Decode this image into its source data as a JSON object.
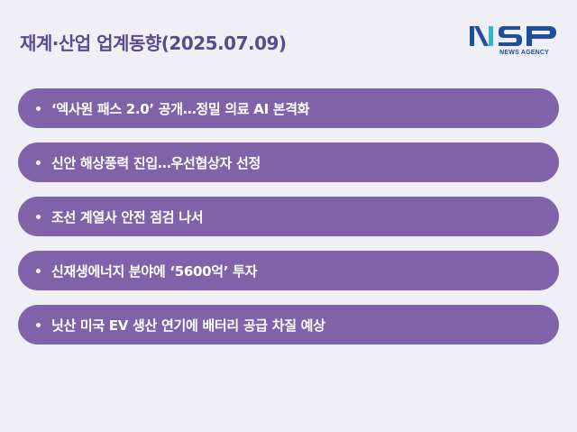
{
  "title": "재계·산업 업계동향(2025.07.09)",
  "logo": {
    "mark": "NSP",
    "subtitle": "NEWS AGENCY",
    "colors": {
      "navy": "#1e4f9c",
      "teal": "#2fb6c9"
    }
  },
  "headlines": [
    "‘엑사원 패스 2.0’ 공개…정밀 의료 AI 본격화",
    "신안 해상풍력 진입…우선협상자 선정",
    "조선 계열사 안전 점검 나서",
    "신재생에너지 분야에 ‘5600억’ 투자",
    "닛산 미국 EV 생산 연기에 배터리 공급 차질 예상"
  ],
  "colors": {
    "background": "#f1eff6",
    "title": "#5b4a8c",
    "pill": "#7f62a8",
    "pill_text": "#ffffff"
  }
}
